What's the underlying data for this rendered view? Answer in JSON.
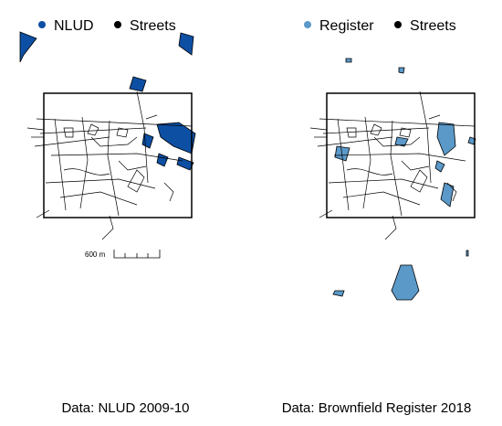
{
  "colors": {
    "nlud": "#0d4fa3",
    "register": "#5b99c9",
    "streets": "#000000",
    "background": "#ffffff"
  },
  "left": {
    "legend": [
      {
        "label": "NLUD",
        "color": "#0d4fa3"
      },
      {
        "label": "Streets",
        "color": "#000000"
      }
    ],
    "caption": "Data: NLUD 2009-10",
    "scalebar_label": "600 m"
  },
  "right": {
    "legend": [
      {
        "label": "Register",
        "color": "#5b99c9"
      },
      {
        "label": "Streets",
        "color": "#000000"
      }
    ],
    "caption": "Data: Brownfield Register 2018"
  }
}
